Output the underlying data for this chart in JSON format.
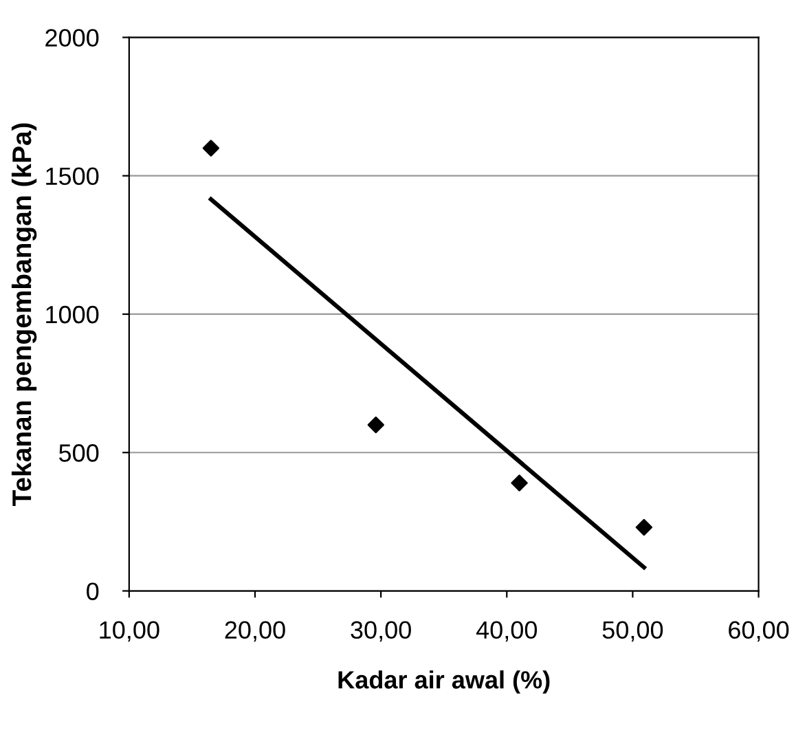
{
  "chart_data": {
    "type": "scatter",
    "xlabel": "Kadar air awal (%)",
    "ylabel": "Tekanan pengembangan (kPa)",
    "xlim": [
      10,
      60
    ],
    "xticks": [
      {
        "value": 10,
        "label": "10,00"
      },
      {
        "value": 20,
        "label": "20,00"
      },
      {
        "value": 30,
        "label": "30,00"
      },
      {
        "value": 40,
        "label": "40,00"
      },
      {
        "value": 50,
        "label": "50,00"
      },
      {
        "value": 60,
        "label": "60,00"
      }
    ],
    "ylim": [
      0,
      2000
    ],
    "yticks": [
      0,
      500,
      1000,
      1500,
      2000
    ],
    "grid": "y",
    "marker": "diamond",
    "series": [
      {
        "color": "#000000",
        "x": [
          16.5,
          29.6,
          41.0,
          50.9
        ],
        "values": [
          1600,
          600,
          390,
          230
        ]
      },
      {
        "type": "line",
        "color": "#000000",
        "x": [
          16.5,
          50.9
        ],
        "values": [
          1415,
          85
        ],
        "marker": "none"
      }
    ]
  }
}
